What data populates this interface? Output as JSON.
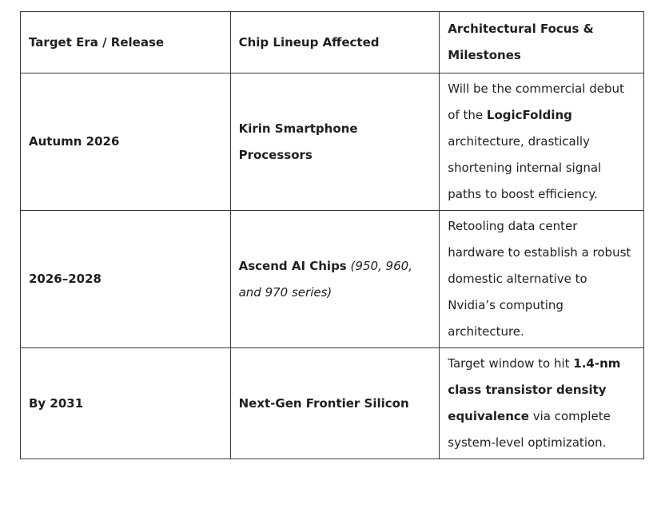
{
  "table": {
    "header": [
      "Target Era / Release",
      "Chip Lineup Affected",
      "Architectural Focus & Milestones"
    ],
    "rows": [
      [
        [
          {
            "text": "Autumn 2026",
            "style": "bold"
          }
        ],
        [
          {
            "text": "Kirin Smartphone Processors",
            "style": "bold"
          }
        ],
        [
          {
            "text": "Will be the commercial debut of the ",
            "style": "normal"
          },
          {
            "text": "LogicFolding",
            "style": "bold"
          },
          {
            "text": " architecture, drastically shortening internal signal paths to boost efficiency.",
            "style": "normal"
          }
        ]
      ],
      [
        [
          {
            "text": "2026–2028",
            "style": "bold"
          }
        ],
        [
          {
            "text": "Ascend AI Chips",
            "style": "bold"
          },
          {
            "text": " (950, 960, and 970 series)",
            "style": "italic"
          }
        ],
        [
          {
            "text": "Retooling data center hardware to establish a robust domestic alternative to Nvidia’s computing architecture.",
            "style": "normal"
          }
        ]
      ],
      [
        [
          {
            "text": "By 2031",
            "style": "bold"
          }
        ],
        [
          {
            "text": "Next-Gen Frontier Silicon",
            "style": "bold"
          }
        ],
        [
          {
            "text": "Target window to hit ",
            "style": "normal"
          },
          {
            "text": "1.4-nm class transistor density equivalence",
            "style": "bold"
          },
          {
            "text": " via complete system-level optimization.",
            "style": "normal"
          }
        ]
      ]
    ]
  }
}
